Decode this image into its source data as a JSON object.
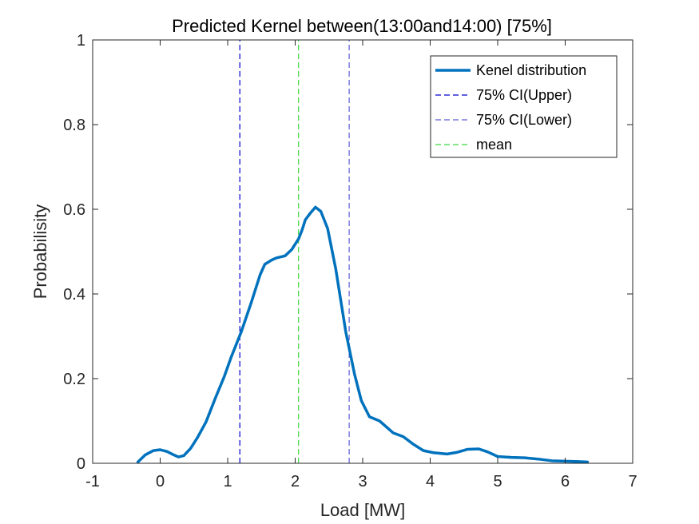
{
  "chart_data": {
    "type": "line",
    "title": "Predicted Kernel between(13:00and14:00) [75%]",
    "xlabel": "Load [MW]",
    "ylabel": "Probabilisity",
    "xlim": [
      -1,
      7
    ],
    "ylim": [
      0,
      1
    ],
    "xticks": [
      -1,
      0,
      1,
      2,
      3,
      4,
      5,
      6,
      7
    ],
    "yticks": [
      0,
      0.2,
      0.4,
      0.6,
      0.8,
      1
    ],
    "xtick_labels": [
      "-1",
      "0",
      "1",
      "2",
      "3",
      "4",
      "5",
      "6",
      "7"
    ],
    "ytick_labels": [
      "0",
      "0.2",
      "0.4",
      "0.6",
      "0.8",
      "1"
    ],
    "grid": false,
    "legend_position": "top-right",
    "series": [
      {
        "name": "Kenel distribution",
        "style": "solid",
        "color": "#0072BD",
        "x": [
          -0.33,
          -0.22,
          -0.1,
          0.0,
          0.1,
          0.2,
          0.27,
          0.35,
          0.45,
          0.55,
          0.68,
          0.82,
          0.95,
          1.05,
          1.2,
          1.35,
          1.48,
          1.55,
          1.65,
          1.72,
          1.85,
          1.95,
          2.05,
          2.1,
          2.15,
          2.22,
          2.3,
          2.38,
          2.48,
          2.6,
          2.75,
          2.88,
          2.98,
          3.1,
          3.25,
          3.45,
          3.6,
          3.75,
          3.9,
          4.05,
          4.25,
          4.4,
          4.55,
          4.72,
          4.85,
          5.0,
          5.2,
          5.4,
          5.6,
          5.8,
          6.0,
          6.2,
          6.33
        ],
        "y": [
          0.003,
          0.02,
          0.03,
          0.032,
          0.028,
          0.02,
          0.015,
          0.018,
          0.035,
          0.06,
          0.098,
          0.155,
          0.205,
          0.25,
          0.31,
          0.38,
          0.445,
          0.47,
          0.48,
          0.485,
          0.49,
          0.505,
          0.53,
          0.55,
          0.575,
          0.59,
          0.605,
          0.595,
          0.555,
          0.46,
          0.31,
          0.21,
          0.148,
          0.11,
          0.1,
          0.072,
          0.063,
          0.045,
          0.03,
          0.025,
          0.022,
          0.026,
          0.033,
          0.034,
          0.027,
          0.016,
          0.014,
          0.013,
          0.01,
          0.006,
          0.005,
          0.004,
          0.003
        ]
      },
      {
        "name": "75% CI(Upper)",
        "style": "dashed",
        "color": "#0000CD",
        "x": [
          1.18,
          1.18
        ],
        "y": [
          0,
          1
        ]
      },
      {
        "name": "75% CI(Lower)",
        "style": "dashed",
        "color": "#5C5CD6",
        "x": [
          2.8,
          2.8
        ],
        "y": [
          0,
          1
        ]
      },
      {
        "name": "mean",
        "style": "dashed",
        "color": "#3CD63C",
        "x": [
          2.05,
          2.05
        ],
        "y": [
          0,
          1
        ]
      }
    ]
  }
}
